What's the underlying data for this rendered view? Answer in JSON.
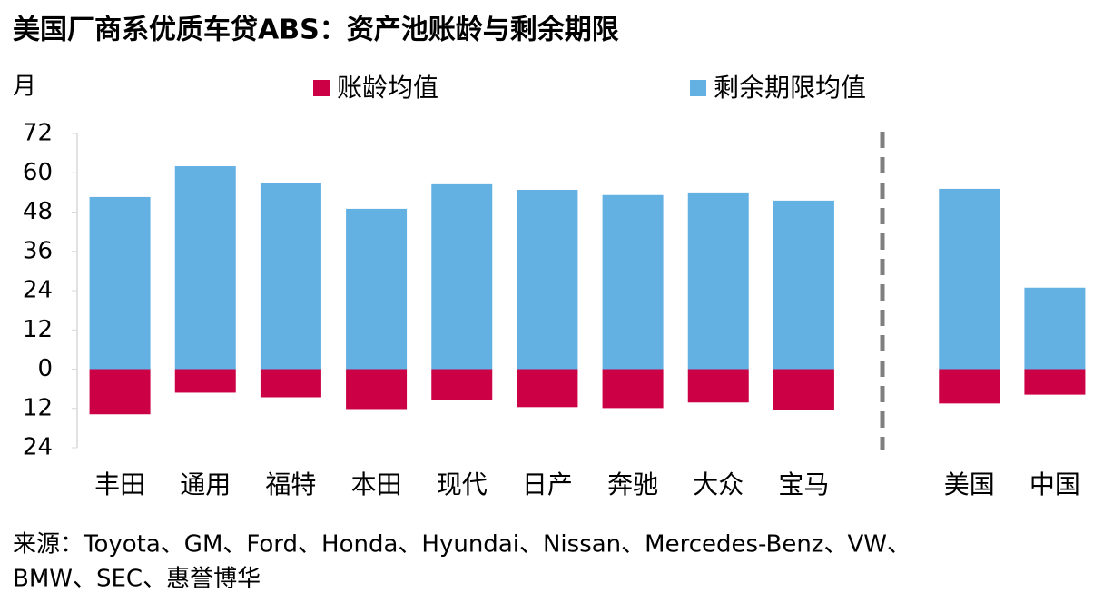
{
  "chart_data": {
    "type": "bar",
    "title": "美国厂商系优质车贷ABS：资产池账龄与剩余期限",
    "y_label": "月",
    "categories": [
      "丰田",
      "通用",
      "福特",
      "本田",
      "现代",
      "日产",
      "奔驰",
      "大众",
      "宝马",
      "美国",
      "中国"
    ],
    "series": [
      {
        "name": "账龄均值",
        "color": "#cc0044",
        "values": [
          -13.8,
          -7.2,
          -8.6,
          -12.2,
          -9.4,
          -11.6,
          -11.9,
          -10.2,
          -12.5,
          -10.5,
          -7.8
        ]
      },
      {
        "name": "剩余期限均值",
        "color": "#63b0e3",
        "values": [
          52.6,
          62,
          56.8,
          49,
          56.5,
          54.8,
          53.2,
          54,
          51.5,
          55.1,
          24.9
        ]
      }
    ],
    "ylim": [
      -24,
      72
    ],
    "yticks": [
      {
        "value": -24,
        "label": "24"
      },
      {
        "value": -12,
        "label": "12"
      },
      0,
      12,
      24,
      36,
      48,
      60,
      72
    ],
    "grid": false,
    "legend": "top",
    "source": [
      "来源：Toyota、GM、Ford、Honda、Hyundai、Nissan、Mercedes-Benz、VW、",
      "BMW、SEC、惠誉博华"
    ]
  }
}
